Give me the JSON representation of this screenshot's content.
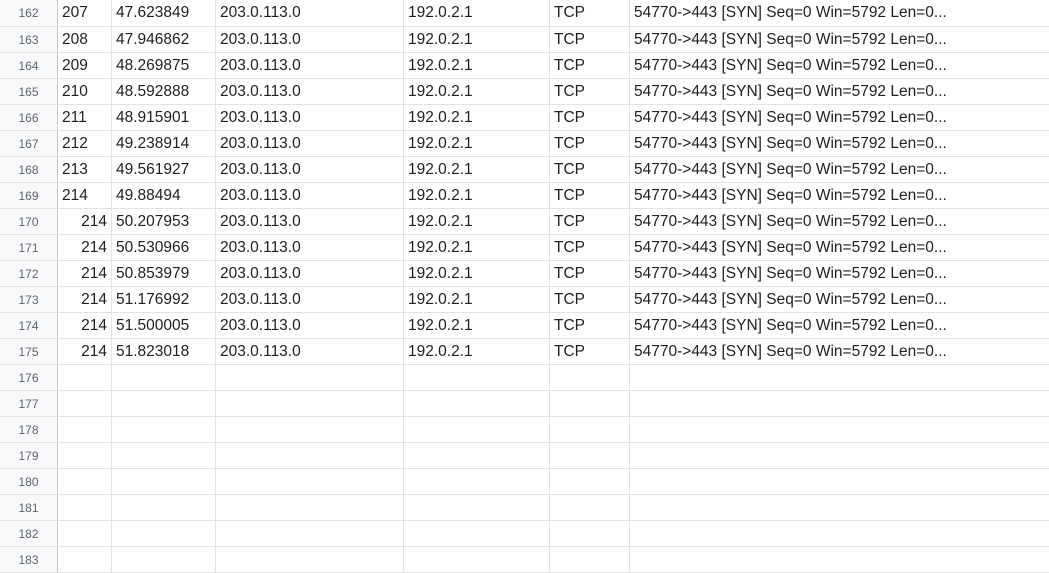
{
  "rows": [
    {
      "num": "162",
      "cells": [
        "207",
        "47.623849",
        "203.0.113.0",
        "192.0.2.1",
        "TCP",
        "54770->443 [SYN] Seq=0 Win=5792 Len=0..."
      ]
    },
    {
      "num": "163",
      "cells": [
        "208",
        "47.946862",
        "203.0.113.0",
        "192.0.2.1",
        "TCP",
        "54770->443 [SYN] Seq=0 Win=5792 Len=0..."
      ]
    },
    {
      "num": "164",
      "cells": [
        "209",
        "48.269875",
        "203.0.113.0",
        "192.0.2.1",
        "TCP",
        "54770->443 [SYN] Seq=0 Win=5792 Len=0..."
      ]
    },
    {
      "num": "165",
      "cells": [
        "210",
        "48.592888",
        "203.0.113.0",
        "192.0.2.1",
        "TCP",
        "54770->443 [SYN] Seq=0 Win=5792 Len=0..."
      ]
    },
    {
      "num": "166",
      "cells": [
        "211",
        "48.915901",
        "203.0.113.0",
        "192.0.2.1",
        "TCP",
        "54770->443 [SYN] Seq=0 Win=5792 Len=0..."
      ]
    },
    {
      "num": "167",
      "cells": [
        "212",
        "49.238914",
        "203.0.113.0",
        "192.0.2.1",
        "TCP",
        "54770->443 [SYN] Seq=0 Win=5792 Len=0..."
      ]
    },
    {
      "num": "168",
      "cells": [
        "213",
        "49.561927",
        "203.0.113.0",
        "192.0.2.1",
        "TCP",
        "54770->443 [SYN] Seq=0 Win=5792 Len=0..."
      ]
    },
    {
      "num": "169",
      "cells": [
        "214",
        "49.88494",
        "203.0.113.0",
        "192.0.2.1",
        "TCP",
        "54770->443 [SYN] Seq=0 Win=5792 Len=0..."
      ]
    },
    {
      "num": "170",
      "cells": [
        "214",
        "50.207953",
        "203.0.113.0",
        "192.0.2.1",
        "TCP",
        "54770->443 [SYN] Seq=0 Win=5792 Len=0..."
      ]
    },
    {
      "num": "171",
      "cells": [
        "214",
        "50.530966",
        "203.0.113.0",
        "192.0.2.1",
        "TCP",
        "54770->443 [SYN] Seq=0 Win=5792 Len=0..."
      ]
    },
    {
      "num": "172",
      "cells": [
        "214",
        "50.853979",
        "203.0.113.0",
        "192.0.2.1",
        "TCP",
        "54770->443 [SYN] Seq=0 Win=5792 Len=0..."
      ]
    },
    {
      "num": "173",
      "cells": [
        "214",
        "51.176992",
        "203.0.113.0",
        "192.0.2.1",
        "TCP",
        "54770->443 [SYN] Seq=0 Win=5792 Len=0..."
      ]
    },
    {
      "num": "174",
      "cells": [
        "214",
        "51.500005",
        "203.0.113.0",
        "192.0.2.1",
        "TCP",
        "54770->443 [SYN] Seq=0 Win=5792 Len=0..."
      ]
    },
    {
      "num": "175",
      "cells": [
        "214",
        "51.823018",
        "203.0.113.0",
        "192.0.2.1",
        "TCP",
        "54770->443 [SYN] Seq=0 Win=5792 Len=0..."
      ]
    },
    {
      "num": "176",
      "cells": [
        "",
        "",
        "",
        "",
        "",
        ""
      ]
    },
    {
      "num": "177",
      "cells": [
        "",
        "",
        "",
        "",
        "",
        ""
      ]
    },
    {
      "num": "178",
      "cells": [
        "",
        "",
        "",
        "",
        "",
        ""
      ]
    },
    {
      "num": "179",
      "cells": [
        "",
        "",
        "",
        "",
        "",
        ""
      ]
    },
    {
      "num": "180",
      "cells": [
        "",
        "",
        "",
        "",
        "",
        ""
      ]
    },
    {
      "num": "181",
      "cells": [
        "",
        "",
        "",
        "",
        "",
        ""
      ]
    },
    {
      "num": "182",
      "cells": [
        "",
        "",
        "",
        "",
        "",
        ""
      ]
    },
    {
      "num": "183",
      "cells": [
        "",
        "",
        "",
        "",
        "",
        ""
      ]
    }
  ],
  "right_aligned_first_cell_rows": [
    "170",
    "171",
    "172",
    "173",
    "174",
    "175"
  ]
}
